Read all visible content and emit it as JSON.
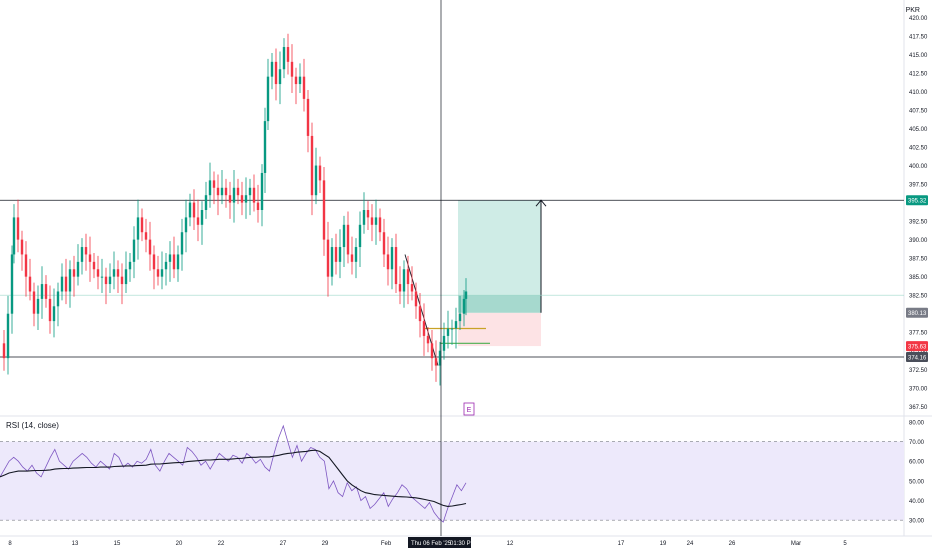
{
  "currency": "PKR",
  "rsi_label": "RSI (14, close)",
  "earnings_marker": "E",
  "crosshair": {
    "date_label": "Thu 06 Feb '25",
    "time_label": "01:30 PM"
  },
  "colors": {
    "up": "#089981",
    "down": "#f23645",
    "rsi_line": "#7e57c2",
    "rsi_ma": "#131722",
    "rsi_band": "#ede9fb",
    "profit_zone": "#cfece6",
    "loss_zone": "#fde3e5",
    "grid": "#f0f3fa"
  },
  "chart_data": [
    {
      "type": "candlestick",
      "title": "",
      "ylim": [
        367.0,
        421.0
      ],
      "y_ticks": [
        "420.00",
        "417.50",
        "415.00",
        "412.50",
        "410.00",
        "407.50",
        "405.00",
        "402.50",
        "400.00",
        "397.50",
        "395.00",
        "392.50",
        "390.00",
        "387.50",
        "385.00",
        "382.50",
        "380.00",
        "377.50",
        "375.00",
        "372.50",
        "370.00",
        "367.50"
      ],
      "x_ticks": [
        "8",
        "13",
        "15",
        "20",
        "22",
        "27",
        "29",
        "Feb",
        "12",
        "17",
        "19",
        "24",
        "26",
        "Mar",
        "5"
      ],
      "price_labels": [
        {
          "text": "395.32",
          "value": 395.32,
          "color": "#089981"
        },
        {
          "text": "380.13",
          "value": 380.13,
          "color": "#787b86"
        },
        {
          "text": "375.63",
          "value": 375.63,
          "color": "#f23645"
        },
        {
          "text": "374.16",
          "value": 374.16,
          "color": "#4a4e5a"
        }
      ],
      "horizontal_lines": [
        395.32,
        374.16,
        382.5
      ],
      "position": {
        "target": 395.32,
        "entry": 380.13,
        "stop": 375.63
      },
      "support_marks": [
        378.0,
        376.0
      ]
    },
    {
      "type": "line",
      "title": "RSI (14, close)",
      "ylim": [
        25.0,
        82.0
      ],
      "y_ticks": [
        "80.00",
        "70.00",
        "60.00",
        "50.00",
        "40.00",
        "30.00"
      ],
      "bands": [
        70,
        30
      ],
      "series": [
        {
          "name": "RSI",
          "values": [
            52,
            56,
            60,
            62,
            60,
            57,
            55,
            58,
            54,
            52,
            57,
            62,
            66,
            60,
            58,
            56,
            60,
            62,
            64,
            62,
            59,
            57,
            60,
            58,
            56,
            64,
            62,
            57,
            59,
            57,
            60,
            59,
            61,
            66,
            58,
            55,
            60,
            64,
            62,
            60,
            58,
            67,
            65,
            62,
            58,
            60,
            56,
            60,
            64,
            62,
            60,
            63,
            62,
            59,
            64,
            62,
            59,
            61,
            57,
            55,
            64,
            72,
            78,
            70,
            62,
            68,
            60,
            64,
            67,
            66,
            62,
            60,
            46,
            50,
            44,
            42,
            49,
            45,
            47,
            40,
            42,
            36,
            38,
            41,
            44,
            37,
            41,
            44,
            48,
            46,
            42,
            40,
            38,
            36,
            39,
            34,
            31,
            29,
            36,
            42,
            48,
            45,
            49
          ]
        },
        {
          "name": "RSI MA",
          "values": [
            52,
            53,
            54,
            54.5,
            55,
            55,
            55,
            55.2,
            55.3,
            55.3,
            55.4,
            55.6,
            56,
            56.2,
            56.3,
            56.3,
            56.5,
            56.6,
            56.7,
            56.8,
            56.8,
            56.8,
            57,
            57,
            57,
            57.3,
            57.4,
            57.5,
            57.6,
            57.6,
            57.8,
            57.9,
            58,
            58.5,
            58.6,
            58.6,
            58.8,
            59,
            59.2,
            59.3,
            59.4,
            59.8,
            60,
            60.2,
            60.4,
            60.6,
            60.6,
            60.8,
            61,
            61,
            61,
            61.2,
            61.4,
            61.5,
            61.8,
            62,
            62,
            62.2,
            62.2,
            62.2,
            62.6,
            63,
            63.6,
            64,
            64.2,
            64.6,
            64.8,
            65,
            65.4,
            65.6,
            65,
            63.5,
            62,
            59,
            56,
            53,
            50,
            48,
            46.5,
            45,
            44,
            43.5,
            43,
            42.8,
            42.6,
            42.4,
            42.2,
            42,
            41.9,
            41.8,
            41.6,
            41.4,
            41,
            40.5,
            40,
            39.5,
            38.5,
            37.5,
            37,
            37.2,
            37.6,
            38,
            38.5
          ]
        }
      ]
    }
  ]
}
